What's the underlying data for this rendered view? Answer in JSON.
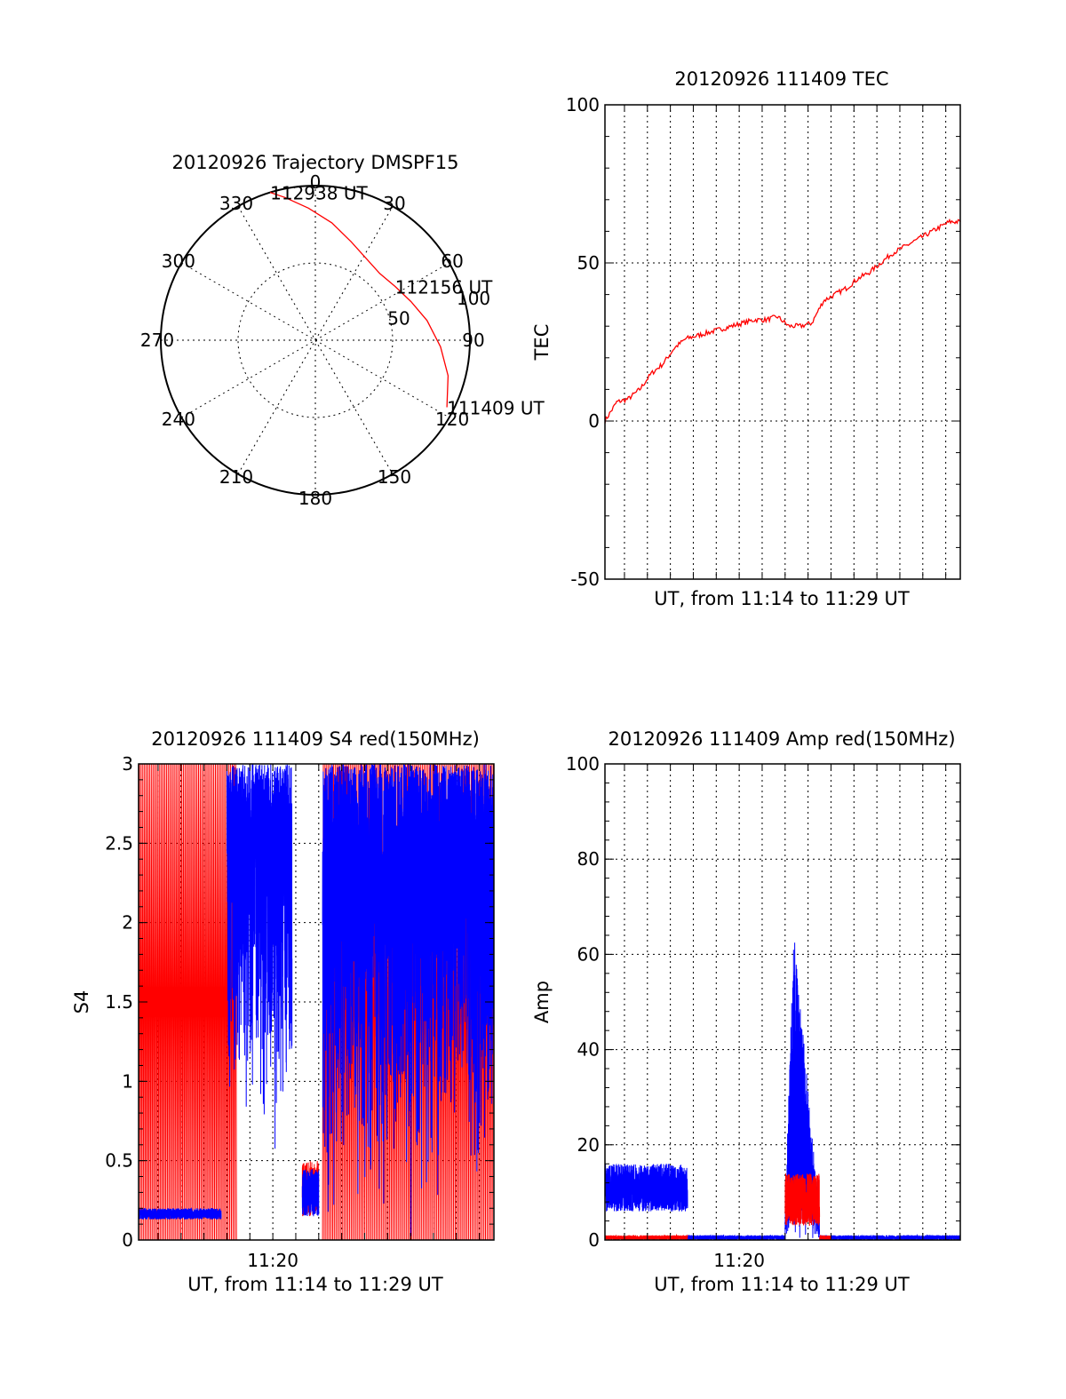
{
  "colors": {
    "red": "#ff0000",
    "blue": "#0000ff",
    "axis": "#000000",
    "background": "#ffffff"
  },
  "chart_data": [
    {
      "id": "trajectory",
      "type": "polar",
      "title": "20120926 Trajectory DMSPF15",
      "angle_labels": [
        "0",
        "30",
        "60",
        "90",
        "120",
        "150",
        "180",
        "210",
        "240",
        "270",
        "300",
        "330"
      ],
      "radial_labels": [
        "50",
        "100"
      ],
      "rlim": [
        0,
        100
      ],
      "grid": true,
      "series": [
        {
          "color": "#ff0000",
          "points": [
            {
              "az": 117,
              "el": 4
            },
            {
              "az": 105,
              "el": 10
            },
            {
              "az": 93,
              "el": 17
            },
            {
              "az": 80,
              "el": 24
            },
            {
              "az": 68,
              "el": 30
            },
            {
              "az": 56,
              "el": 34
            },
            {
              "az": 44,
              "el": 36
            },
            {
              "az": 32,
              "el": 34
            },
            {
              "az": 20,
              "el": 29
            },
            {
              "az": 8,
              "el": 21
            },
            {
              "az": -3,
              "el": 13
            },
            {
              "az": -12,
              "el": 5
            },
            {
              "az": -17,
              "el": 0
            }
          ]
        }
      ],
      "annotations": [
        {
          "text": "111409 UT",
          "az": 117,
          "el": 4
        },
        {
          "text": "112156 UT",
          "az": 56,
          "el": 34
        },
        {
          "text": "112938 UT",
          "az": -17,
          "el": 0
        }
      ]
    },
    {
      "id": "tec",
      "type": "line",
      "title": "20120926 111409 TEC",
      "xlabel": "UT, from 11:14 to 11:29 UT",
      "ylabel": "TEC",
      "xlim": [
        "11:14:09",
        "11:29:38"
      ],
      "ylim": [
        -50,
        100
      ],
      "yticks": [
        "-50",
        "0",
        "50",
        "100"
      ],
      "xticks": [],
      "grid": true,
      "series": [
        {
          "color": "#ff0000",
          "x": [
            "11:14:09",
            "11:14:40",
            "11:15:10",
            "11:15:40",
            "11:16:10",
            "11:16:40",
            "11:17:10",
            "11:17:40",
            "11:18:10",
            "11:18:40",
            "11:19:10",
            "11:19:40",
            "11:20:10",
            "11:20:40",
            "11:21:10",
            "11:21:40",
            "11:22:10",
            "11:22:40",
            "11:23:10",
            "11:23:40",
            "11:24:10",
            "11:24:40",
            "11:25:10",
            "11:25:40",
            "11:26:10",
            "11:26:40",
            "11:27:10",
            "11:27:40",
            "11:28:10",
            "11:28:40",
            "11:29:10",
            "11:29:38"
          ],
          "y": [
            0,
            6,
            7,
            10,
            15,
            18,
            23,
            26,
            27,
            28,
            29,
            30,
            31,
            32,
            32,
            33,
            30,
            30,
            31,
            38,
            40,
            42,
            45,
            47,
            50,
            53,
            55,
            57,
            59,
            61,
            63,
            63
          ]
        }
      ]
    },
    {
      "id": "s4",
      "type": "line",
      "title": "20120926 111409 S4 red(150MHz)",
      "xlabel": "UT, from 11:14 to 11:29 UT",
      "ylabel": "S4",
      "xlim": [
        "11:14:09",
        "11:29:38"
      ],
      "ylim": [
        0,
        3
      ],
      "yticks": [
        "0",
        "0.5",
        "1",
        "1.5",
        "2",
        "2.5",
        "3"
      ],
      "xticks": [
        "11:20"
      ],
      "grid": true,
      "series": [
        {
          "color": "#ff0000",
          "segments": [
            {
              "x": [
                "11:14:09",
                "11:18:25"
              ],
              "y_range": [
                0,
                3
              ],
              "pattern": "saturated"
            },
            {
              "x": [
                "11:21:17",
                "11:22:00"
              ],
              "y_range": [
                0.15,
                0.5
              ],
              "pattern": "noise"
            },
            {
              "x": [
                "11:22:10",
                "11:29:38"
              ],
              "y_range": [
                0,
                3
              ],
              "pattern": "saturated"
            }
          ]
        },
        {
          "color": "#0000ff",
          "segments": [
            {
              "x": [
                "11:14:09",
                "11:17:45"
              ],
              "y_range": [
                0.13,
                0.2
              ],
              "pattern": "noise"
            },
            {
              "x": [
                "11:18:00",
                "11:20:50"
              ],
              "y_range": [
                0.5,
                3
              ],
              "pattern": "spiky"
            },
            {
              "x": [
                "11:21:17",
                "11:22:00"
              ],
              "y_range": [
                0.15,
                0.45
              ],
              "pattern": "noise"
            },
            {
              "x": [
                "11:22:10",
                "11:29:38"
              ],
              "y_range": [
                0.0,
                3
              ],
              "pattern": "spiky"
            }
          ]
        }
      ]
    },
    {
      "id": "amp",
      "type": "line",
      "title": "20120926 111409 Amp red(150MHz)",
      "xlabel": "UT, from 11:14 to 11:29 UT",
      "ylabel": "Amp",
      "xlim": [
        "11:14:09",
        "11:29:38"
      ],
      "ylim": [
        0,
        100
      ],
      "yticks": [
        "0",
        "20",
        "40",
        "60",
        "80",
        "100"
      ],
      "xticks": [
        "11:20"
      ],
      "grid": true,
      "series": [
        {
          "color": "#0000ff",
          "segments": [
            {
              "x": [
                "11:14:09",
                "11:17:45"
              ],
              "y_range": [
                6,
                16
              ],
              "pattern": "noise"
            },
            {
              "x": [
                "11:17:45",
                "11:22:00"
              ],
              "y_range": [
                0,
                1
              ],
              "pattern": "noise"
            },
            {
              "x": [
                "11:22:00",
                "11:23:30"
              ],
              "y_range": [
                5,
                68
              ],
              "pattern": "burst"
            },
            {
              "x": [
                "11:23:30",
                "11:29:38"
              ],
              "y_range": [
                0,
                1
              ],
              "pattern": "noise"
            }
          ]
        },
        {
          "color": "#ff0000",
          "segments": [
            {
              "x": [
                "11:14:09",
                "11:17:45"
              ],
              "y_range": [
                0,
                1
              ],
              "pattern": "noise"
            },
            {
              "x": [
                "11:22:00",
                "11:23:30"
              ],
              "y_range": [
                3,
                14
              ],
              "pattern": "noise"
            },
            {
              "x": [
                "11:23:30",
                "11:24:00"
              ],
              "y_range": [
                0,
                1
              ],
              "pattern": "noise"
            }
          ]
        }
      ]
    }
  ]
}
